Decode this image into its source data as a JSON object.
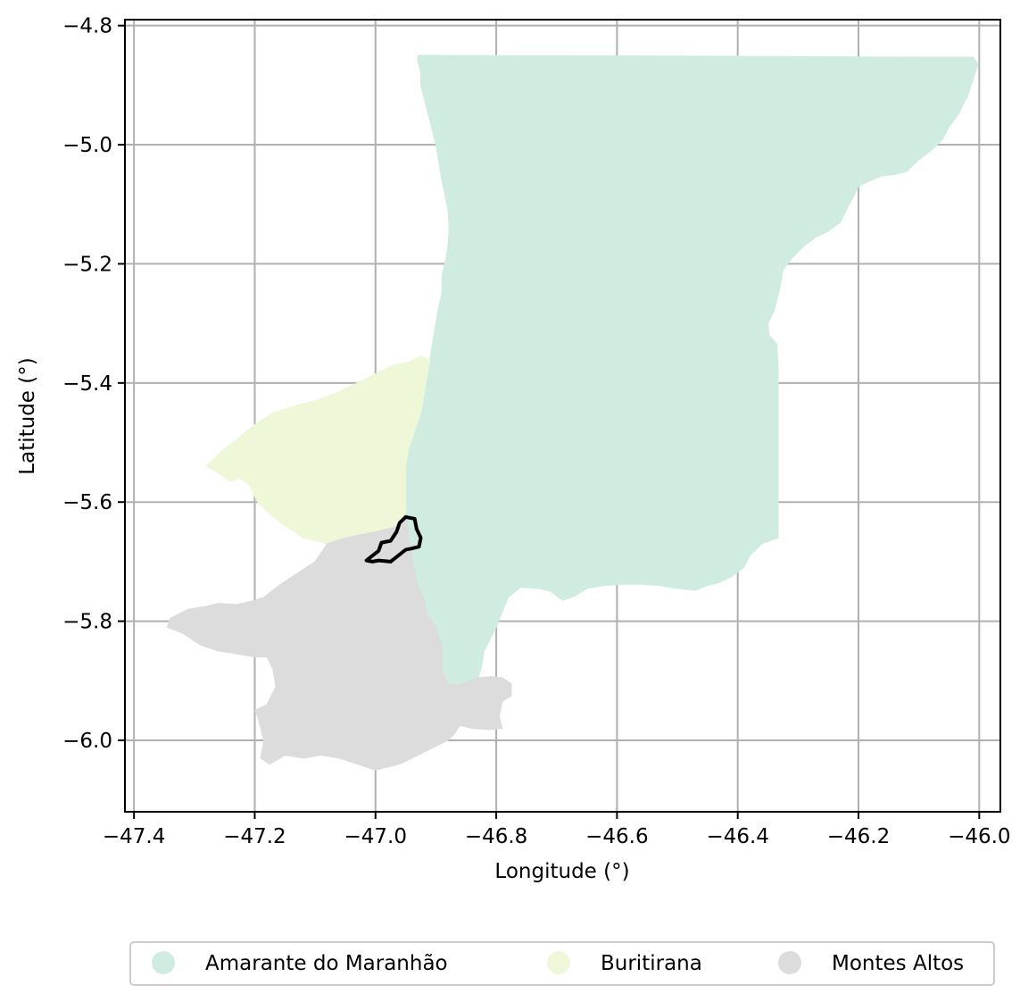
{
  "chart_data": {
    "type": "map",
    "xlabel": "Longitude (°)",
    "ylabel": "Latitude (°)",
    "xlim": [
      -47.415,
      -45.965
    ],
    "ylim": [
      -6.12,
      -4.79
    ],
    "xticks": [
      -47.4,
      -47.2,
      -47.0,
      -46.8,
      -46.6,
      -46.4,
      -46.2,
      -46.0
    ],
    "yticks": [
      -4.8,
      -5.0,
      -5.2,
      -5.4,
      -5.6,
      -5.8,
      -6.0
    ],
    "grid": true,
    "legend_position": "bottom-center",
    "regions": [
      {
        "name": "Amarante do Maranhão",
        "color": "#d0ece0",
        "polygon": [
          [
            -46.93,
            -4.85
          ],
          [
            -46.5,
            -4.851
          ],
          [
            -46.1,
            -4.853
          ],
          [
            -46.01,
            -4.853
          ],
          [
            -46.002,
            -4.865
          ],
          [
            -46.01,
            -4.89
          ],
          [
            -46.02,
            -4.92
          ],
          [
            -46.035,
            -4.95
          ],
          [
            -46.05,
            -4.97
          ],
          [
            -46.06,
            -4.99
          ],
          [
            -46.08,
            -5.01
          ],
          [
            -46.1,
            -5.025
          ],
          [
            -46.12,
            -5.045
          ],
          [
            -46.14,
            -5.05
          ],
          [
            -46.16,
            -5.052
          ],
          [
            -46.18,
            -5.06
          ],
          [
            -46.2,
            -5.07
          ],
          [
            -46.21,
            -5.09
          ],
          [
            -46.22,
            -5.11
          ],
          [
            -46.23,
            -5.13
          ],
          [
            -46.25,
            -5.145
          ],
          [
            -46.27,
            -5.155
          ],
          [
            -46.29,
            -5.17
          ],
          [
            -46.31,
            -5.19
          ],
          [
            -46.325,
            -5.21
          ],
          [
            -46.33,
            -5.24
          ],
          [
            -46.335,
            -5.26
          ],
          [
            -46.34,
            -5.28
          ],
          [
            -46.35,
            -5.3
          ],
          [
            -46.348,
            -5.32
          ],
          [
            -46.335,
            -5.335
          ],
          [
            -46.333,
            -5.38
          ],
          [
            -46.333,
            -5.45
          ],
          [
            -46.333,
            -5.52
          ],
          [
            -46.333,
            -5.6
          ],
          [
            -46.333,
            -5.66
          ],
          [
            -46.36,
            -5.67
          ],
          [
            -46.38,
            -5.69
          ],
          [
            -46.39,
            -5.71
          ],
          [
            -46.41,
            -5.725
          ],
          [
            -46.43,
            -5.735
          ],
          [
            -46.45,
            -5.74
          ],
          [
            -46.47,
            -5.748
          ],
          [
            -46.5,
            -5.745
          ],
          [
            -46.53,
            -5.74
          ],
          [
            -46.56,
            -5.738
          ],
          [
            -46.59,
            -5.738
          ],
          [
            -46.62,
            -5.74
          ],
          [
            -46.65,
            -5.745
          ],
          [
            -46.67,
            -5.758
          ],
          [
            -46.69,
            -5.765
          ],
          [
            -46.71,
            -5.75
          ],
          [
            -46.73,
            -5.745
          ],
          [
            -46.76,
            -5.743
          ],
          [
            -46.78,
            -5.76
          ],
          [
            -46.79,
            -5.785
          ],
          [
            -46.8,
            -5.81
          ],
          [
            -46.81,
            -5.83
          ],
          [
            -46.82,
            -5.85
          ],
          [
            -46.825,
            -5.88
          ],
          [
            -46.83,
            -5.895
          ],
          [
            -46.86,
            -5.907
          ],
          [
            -46.88,
            -5.907
          ],
          [
            -46.89,
            -5.88
          ],
          [
            -46.89,
            -5.84
          ],
          [
            -46.9,
            -5.81
          ],
          [
            -46.915,
            -5.79
          ],
          [
            -46.92,
            -5.76
          ],
          [
            -46.93,
            -5.74
          ],
          [
            -46.935,
            -5.715
          ],
          [
            -46.94,
            -5.69
          ],
          [
            -46.945,
            -5.66
          ],
          [
            -46.948,
            -5.63
          ],
          [
            -46.95,
            -5.6
          ],
          [
            -46.95,
            -5.57
          ],
          [
            -46.95,
            -5.54
          ],
          [
            -46.945,
            -5.51
          ],
          [
            -46.935,
            -5.48
          ],
          [
            -46.925,
            -5.45
          ],
          [
            -46.92,
            -5.42
          ],
          [
            -46.915,
            -5.39
          ],
          [
            -46.91,
            -5.36
          ],
          [
            -46.905,
            -5.33
          ],
          [
            -46.9,
            -5.3
          ],
          [
            -46.895,
            -5.27
          ],
          [
            -46.89,
            -5.25
          ],
          [
            -46.89,
            -5.22
          ],
          [
            -46.885,
            -5.2
          ],
          [
            -46.88,
            -5.17
          ],
          [
            -46.878,
            -5.14
          ],
          [
            -46.88,
            -5.11
          ],
          [
            -46.885,
            -5.085
          ],
          [
            -46.89,
            -5.06
          ],
          [
            -46.895,
            -5.03
          ],
          [
            -46.9,
            -5.0
          ],
          [
            -46.905,
            -4.98
          ],
          [
            -46.91,
            -4.96
          ],
          [
            -46.915,
            -4.94
          ],
          [
            -46.92,
            -4.92
          ],
          [
            -46.925,
            -4.9
          ],
          [
            -46.925,
            -4.88
          ],
          [
            -46.93,
            -4.86
          ]
        ]
      },
      {
        "name": "Buritirana",
        "color": "#eef8d8",
        "polygon": [
          [
            -46.95,
            -5.6
          ],
          [
            -46.95,
            -5.57
          ],
          [
            -46.95,
            -5.54
          ],
          [
            -46.945,
            -5.51
          ],
          [
            -46.935,
            -5.48
          ],
          [
            -46.925,
            -5.45
          ],
          [
            -46.92,
            -5.42
          ],
          [
            -46.915,
            -5.39
          ],
          [
            -46.91,
            -5.36
          ],
          [
            -46.925,
            -5.355
          ],
          [
            -46.945,
            -5.365
          ],
          [
            -46.97,
            -5.37
          ],
          [
            -47.0,
            -5.385
          ],
          [
            -47.03,
            -5.4
          ],
          [
            -47.06,
            -5.415
          ],
          [
            -47.1,
            -5.43
          ],
          [
            -47.14,
            -5.44
          ],
          [
            -47.17,
            -5.45
          ],
          [
            -47.2,
            -5.47
          ],
          [
            -47.23,
            -5.495
          ],
          [
            -47.255,
            -5.515
          ],
          [
            -47.28,
            -5.54
          ],
          [
            -47.27,
            -5.545
          ],
          [
            -47.255,
            -5.555
          ],
          [
            -47.24,
            -5.565
          ],
          [
            -47.225,
            -5.56
          ],
          [
            -47.21,
            -5.57
          ],
          [
            -47.195,
            -5.6
          ],
          [
            -47.175,
            -5.62
          ],
          [
            -47.15,
            -5.64
          ],
          [
            -47.12,
            -5.66
          ],
          [
            -47.08,
            -5.67
          ],
          [
            -47.05,
            -5.66
          ],
          [
            -47.0,
            -5.65
          ],
          [
            -46.96,
            -5.64
          ],
          [
            -46.95,
            -5.62
          ]
        ]
      },
      {
        "name": "Montes Altos",
        "color": "#dcdcdc",
        "polygon": [
          [
            -47.08,
            -5.67
          ],
          [
            -47.05,
            -5.66
          ],
          [
            -47.0,
            -5.65
          ],
          [
            -46.96,
            -5.64
          ],
          [
            -46.95,
            -5.62
          ],
          [
            -46.948,
            -5.63
          ],
          [
            -46.945,
            -5.66
          ],
          [
            -46.94,
            -5.69
          ],
          [
            -46.935,
            -5.715
          ],
          [
            -46.93,
            -5.74
          ],
          [
            -46.92,
            -5.76
          ],
          [
            -46.915,
            -5.79
          ],
          [
            -46.9,
            -5.81
          ],
          [
            -46.89,
            -5.84
          ],
          [
            -46.89,
            -5.88
          ],
          [
            -46.88,
            -5.907
          ],
          [
            -46.86,
            -5.907
          ],
          [
            -46.83,
            -5.895
          ],
          [
            -46.81,
            -5.893
          ],
          [
            -46.79,
            -5.895
          ],
          [
            -46.775,
            -5.905
          ],
          [
            -46.775,
            -5.925
          ],
          [
            -46.79,
            -5.935
          ],
          [
            -46.795,
            -5.96
          ],
          [
            -46.79,
            -5.98
          ],
          [
            -46.81,
            -5.982
          ],
          [
            -46.84,
            -5.98
          ],
          [
            -46.86,
            -5.975
          ],
          [
            -46.87,
            -5.99
          ],
          [
            -46.88,
            -6.0
          ],
          [
            -46.9,
            -6.01
          ],
          [
            -46.92,
            -6.02
          ],
          [
            -46.94,
            -6.03
          ],
          [
            -46.96,
            -6.04
          ],
          [
            -46.98,
            -6.045
          ],
          [
            -47.0,
            -6.05
          ],
          [
            -47.03,
            -6.04
          ],
          [
            -47.06,
            -6.03
          ],
          [
            -47.09,
            -6.025
          ],
          [
            -47.12,
            -6.03
          ],
          [
            -47.15,
            -6.025
          ],
          [
            -47.175,
            -6.04
          ],
          [
            -47.19,
            -6.03
          ],
          [
            -47.185,
            -6.0
          ],
          [
            -47.19,
            -5.98
          ],
          [
            -47.195,
            -5.96
          ],
          [
            -47.2,
            -5.95
          ],
          [
            -47.18,
            -5.94
          ],
          [
            -47.165,
            -5.91
          ],
          [
            -47.17,
            -5.88
          ],
          [
            -47.18,
            -5.86
          ],
          [
            -47.2,
            -5.86
          ],
          [
            -47.23,
            -5.855
          ],
          [
            -47.26,
            -5.85
          ],
          [
            -47.29,
            -5.84
          ],
          [
            -47.32,
            -5.82
          ],
          [
            -47.345,
            -5.81
          ],
          [
            -47.34,
            -5.795
          ],
          [
            -47.31,
            -5.78
          ],
          [
            -47.28,
            -5.775
          ],
          [
            -47.26,
            -5.77
          ],
          [
            -47.23,
            -5.772
          ],
          [
            -47.2,
            -5.765
          ],
          [
            -47.185,
            -5.76
          ],
          [
            -47.16,
            -5.74
          ],
          [
            -47.13,
            -5.72
          ],
          [
            -47.1,
            -5.7
          ]
        ]
      }
    ],
    "highlight_outline": {
      "color": "#000000",
      "polygon": [
        [
          -46.95,
          -5.625
        ],
        [
          -46.935,
          -5.628
        ],
        [
          -46.932,
          -5.645
        ],
        [
          -46.925,
          -5.66
        ],
        [
          -46.928,
          -5.675
        ],
        [
          -46.94,
          -5.678
        ],
        [
          -46.95,
          -5.68
        ],
        [
          -46.96,
          -5.688
        ],
        [
          -46.975,
          -5.7
        ],
        [
          -46.995,
          -5.698
        ],
        [
          -47.005,
          -5.7
        ],
        [
          -47.015,
          -5.698
        ],
        [
          -47.005,
          -5.69
        ],
        [
          -46.995,
          -5.682
        ],
        [
          -46.99,
          -5.668
        ],
        [
          -46.975,
          -5.665
        ],
        [
          -46.965,
          -5.65
        ],
        [
          -46.96,
          -5.635
        ]
      ]
    },
    "legend": [
      {
        "label": "Amarante do Maranhão",
        "color": "#d0ece0"
      },
      {
        "label": "Buritirana",
        "color": "#eef8d8"
      },
      {
        "label": "Montes Altos",
        "color": "#dcdcdc"
      }
    ]
  }
}
